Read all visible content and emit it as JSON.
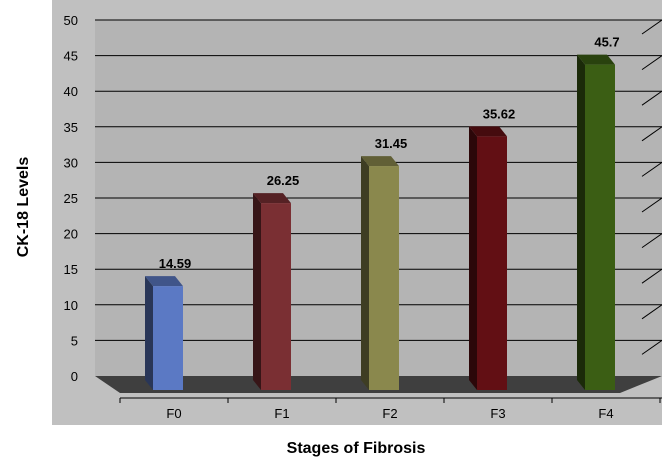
{
  "chart_data": {
    "type": "bar",
    "title": "",
    "xlabel": "Stages of Fibrosis",
    "ylabel": "CK-18  Levels",
    "categories": [
      "F0",
      "F1",
      "F2",
      "F3",
      "F4"
    ],
    "values": [
      14.59,
      26.25,
      31.45,
      35.62,
      45.7
    ],
    "data_labels": [
      "14.59",
      "26.25",
      "31.45",
      "35.62",
      "45.7"
    ],
    "ylim": [
      0,
      50
    ],
    "yticks": [
      "0",
      "5",
      "10",
      "15",
      "20",
      "25",
      "30",
      "35",
      "40",
      "45",
      "50"
    ],
    "grid": true,
    "legend": "none",
    "style": "3d-column",
    "colors": {
      "background": "#c0c0c0",
      "plot_area": "#b0b0b0",
      "floor": "#404040",
      "gridline": "#000000",
      "bars": [
        "#5b79c4",
        "#7a2f33",
        "#8a884d",
        "#620f14",
        "#3b5e14"
      ]
    }
  }
}
